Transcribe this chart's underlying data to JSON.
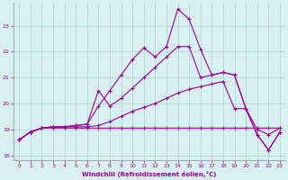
{
  "xlabel": "Windchill (Refroidissement éolien,°C)",
  "bg_color": "#d9f0f0",
  "grid_color": "#b0d8d8",
  "line_color": "#990099",
  "xlim": [
    -0.5,
    23.5
  ],
  "ylim": [
    17.8,
    23.9
  ],
  "xticks": [
    0,
    1,
    2,
    3,
    4,
    5,
    6,
    7,
    8,
    9,
    10,
    11,
    12,
    13,
    14,
    15,
    16,
    17,
    18,
    19,
    20,
    21,
    22,
    23
  ],
  "yticks": [
    18,
    19,
    20,
    21,
    22,
    23
  ],
  "lines": [
    {
      "x": [
        0,
        1,
        2,
        3,
        4,
        5,
        6,
        7,
        8,
        9,
        10,
        11,
        12,
        13,
        14,
        15,
        16,
        17,
        18,
        19,
        20,
        21,
        22,
        23
      ],
      "y": [
        18.6,
        18.9,
        19.05,
        19.05,
        19.05,
        19.05,
        19.05,
        19.05,
        19.05,
        19.05,
        19.05,
        19.05,
        19.05,
        19.05,
        19.05,
        19.05,
        19.05,
        19.05,
        19.05,
        19.05,
        19.05,
        19.05,
        19.05,
        19.05
      ]
    },
    {
      "x": [
        0,
        1,
        2,
        3,
        4,
        5,
        6,
        7,
        8,
        9,
        10,
        11,
        12,
        13,
        14,
        15,
        16,
        17,
        18,
        19,
        20,
        21,
        22,
        23
      ],
      "y": [
        18.6,
        18.9,
        19.05,
        19.1,
        19.1,
        19.1,
        19.1,
        19.15,
        19.3,
        19.5,
        19.7,
        19.85,
        20.0,
        20.2,
        20.4,
        20.55,
        20.65,
        20.75,
        20.85,
        19.8,
        19.8,
        19.0,
        18.8,
        19.05
      ]
    },
    {
      "x": [
        0,
        1,
        2,
        3,
        4,
        5,
        6,
        7,
        8,
        9,
        10,
        11,
        12,
        13,
        14,
        15,
        16,
        17,
        18,
        19,
        20,
        21,
        22,
        23
      ],
      "y": [
        18.6,
        18.9,
        19.05,
        19.1,
        19.1,
        19.15,
        19.2,
        20.5,
        19.9,
        20.2,
        20.6,
        21.0,
        21.4,
        21.8,
        22.2,
        22.2,
        21.0,
        21.1,
        21.2,
        21.1,
        19.8,
        18.8,
        18.2,
        18.9
      ]
    },
    {
      "x": [
        0,
        1,
        2,
        3,
        4,
        5,
        6,
        7,
        8,
        9,
        10,
        11,
        12,
        13,
        14,
        15,
        16,
        17,
        18,
        19,
        20,
        21,
        22,
        23
      ],
      "y": [
        18.6,
        18.9,
        19.05,
        19.1,
        19.1,
        19.15,
        19.2,
        19.9,
        20.5,
        21.1,
        21.7,
        22.15,
        21.8,
        22.2,
        23.65,
        23.25,
        22.1,
        21.1,
        21.2,
        21.1,
        19.8,
        18.8,
        18.2,
        18.9
      ]
    }
  ]
}
